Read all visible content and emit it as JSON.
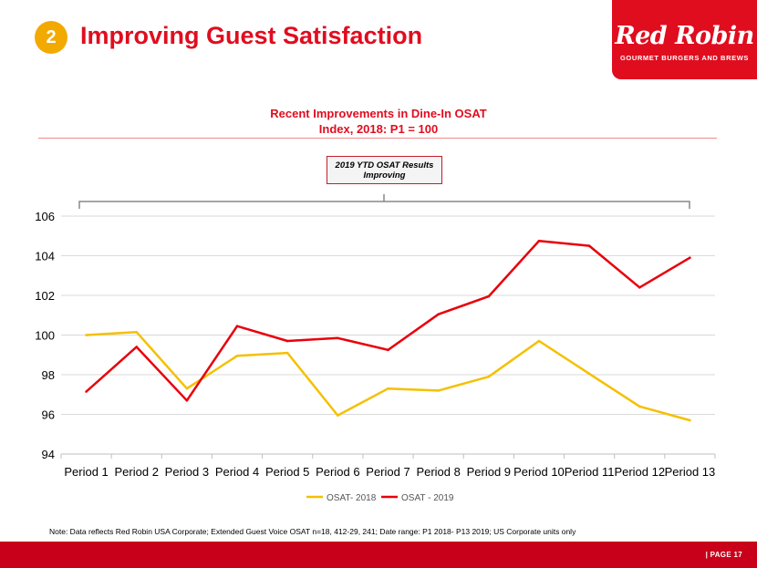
{
  "header": {
    "badge": "2",
    "title": "Improving Guest Satisfaction"
  },
  "logo": {
    "name": "Red Robin",
    "tagline": "GOURMET BURGERS AND BREWS"
  },
  "chart_title_line1": "Recent Improvements in Dine-In OSAT",
  "chart_title_line2": "Index, 2018: P1 = 100",
  "callout": {
    "line1": "2019 YTD OSAT Results",
    "line2": "Improving"
  },
  "note": "Note: Data reflects Red Robin USA Corporate; Extended Guest Voice OSAT n=18, 412-29, 241; Date range: P1 2018- P13 2019; US Corporate units only",
  "footer": {
    "page": "| PAGE 17"
  },
  "colors": {
    "brand_red": "#e00d1f",
    "series_2018": "#f5c000",
    "series_2019": "#e8000b"
  },
  "chart_data": {
    "type": "line",
    "title": "Recent Improvements in Dine-In OSAT Index, 2018: P1 = 100",
    "categories": [
      "Period 1",
      "Period 2",
      "Period 3",
      "Period 4",
      "Period 5",
      "Period 6",
      "Period 7",
      "Period 8",
      "Period 9",
      "Period 10",
      "Period 11",
      "Period 12",
      "Period 13"
    ],
    "series": [
      {
        "name": "OSAT- 2018",
        "color": "#f5c000",
        "values": [
          100.0,
          100.15,
          97.3,
          98.95,
          99.1,
          95.95,
          97.3,
          97.2,
          97.9,
          99.7,
          98.05,
          96.4,
          95.7
        ]
      },
      {
        "name": "OSAT - 2019",
        "color": "#e8000b",
        "values": [
          97.15,
          99.4,
          96.7,
          100.45,
          99.7,
          99.85,
          99.25,
          101.05,
          101.95,
          104.75,
          104.5,
          102.4,
          103.9
        ]
      }
    ],
    "ylim": [
      94,
      106
    ],
    "yticks": [
      94,
      96,
      98,
      100,
      102,
      104,
      106
    ],
    "grid": true,
    "legend": "bottom"
  }
}
